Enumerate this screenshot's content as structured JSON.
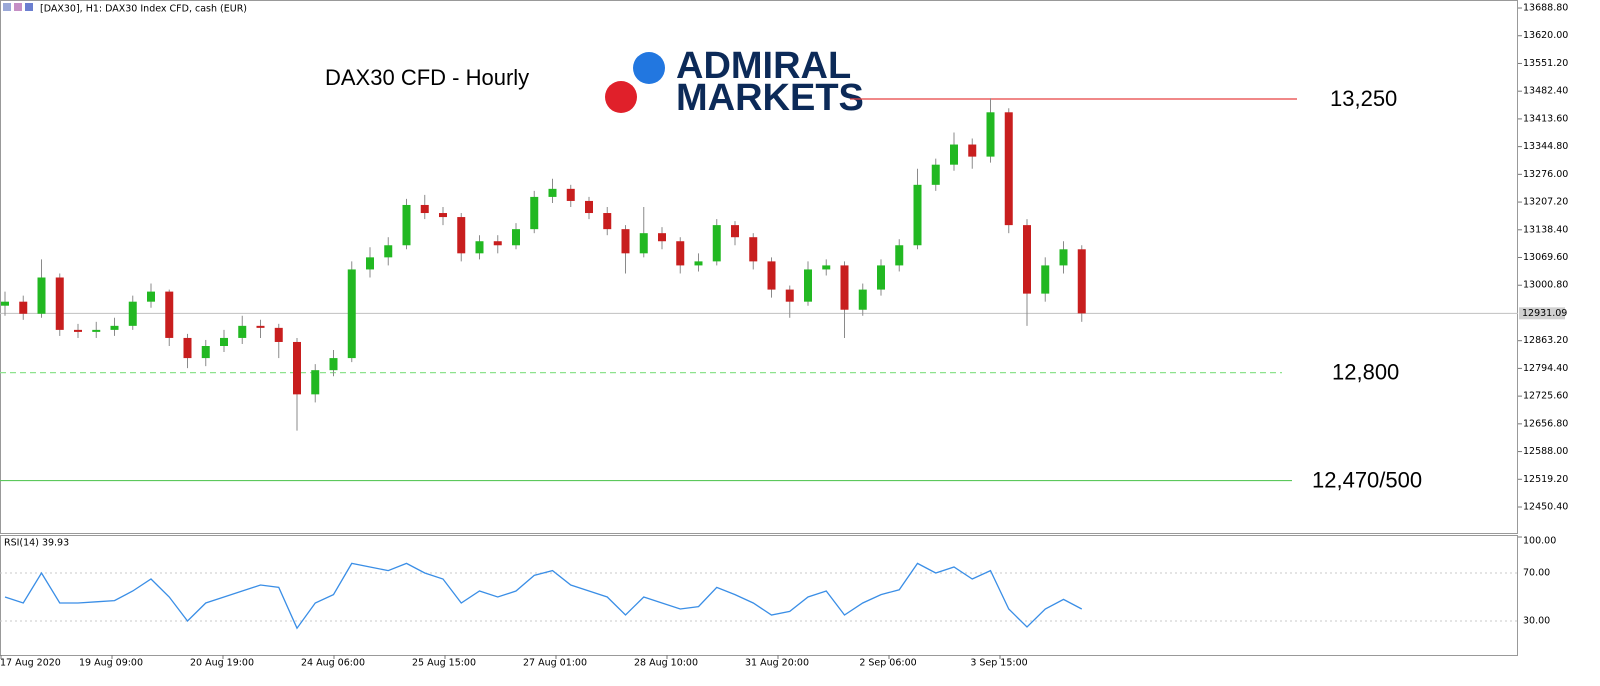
{
  "header": "[DAX30], H1:  DAX30 Index CFD, cash (EUR)",
  "logo": {
    "line1": "ADMIRAL",
    "line2": "MARKETS"
  },
  "chart_data": [
    {
      "type": "candlestick",
      "title": "DAX30 CFD - Hourly",
      "open": [
        12950,
        12960,
        12930,
        13020,
        12890,
        12885,
        12890,
        12900,
        12960,
        12985,
        12870,
        12820,
        12850,
        12870,
        12900,
        12895,
        12860,
        12730,
        12790,
        12820,
        13040,
        13070,
        13100,
        13200,
        13180,
        13170,
        13080,
        13110,
        13100,
        13140,
        13220,
        13240,
        13210,
        13180,
        13140,
        13080,
        13130,
        13110,
        13050,
        13060,
        13150,
        13120,
        13060,
        12990,
        12960,
        13040,
        13050,
        12940,
        12990,
        13050,
        13100,
        13250,
        13300,
        13350,
        13320,
        13430,
        13150,
        12980,
        13050,
        13090
      ],
      "high": [
        12985,
        12975,
        13065,
        13030,
        12905,
        12910,
        12920,
        12975,
        13005,
        12990,
        12880,
        12865,
        12890,
        12925,
        12915,
        12905,
        12870,
        12805,
        12840,
        13060,
        13095,
        13120,
        13215,
        13225,
        13195,
        13180,
        13125,
        13125,
        13155,
        13235,
        13265,
        13250,
        13220,
        13195,
        13150,
        13195,
        13145,
        13120,
        13080,
        13165,
        13160,
        13130,
        13070,
        13000,
        13060,
        13065,
        13060,
        13005,
        13065,
        13115,
        13290,
        13315,
        13380,
        13365,
        13465,
        13440,
        13165,
        13070,
        13110,
        13100
      ],
      "low": [
        12925,
        12915,
        12920,
        12875,
        12870,
        12870,
        12875,
        12890,
        12945,
        12850,
        12795,
        12800,
        12835,
        12855,
        12870,
        12820,
        12640,
        12710,
        12775,
        12810,
        13020,
        13050,
        13090,
        13165,
        13150,
        13060,
        13065,
        13080,
        13090,
        13130,
        13205,
        13195,
        13165,
        13125,
        13030,
        13070,
        13090,
        13030,
        13035,
        13050,
        13100,
        13040,
        12970,
        12920,
        12950,
        13025,
        12870,
        12925,
        12975,
        13035,
        13090,
        13235,
        13285,
        13290,
        13305,
        13130,
        12900,
        12960,
        13030,
        12910
      ],
      "close": [
        12960,
        12930,
        13020,
        12890,
        12885,
        12890,
        12900,
        12960,
        12985,
        12870,
        12820,
        12850,
        12870,
        12900,
        12895,
        12860,
        12730,
        12790,
        12820,
        13040,
        13070,
        13100,
        13200,
        13180,
        13170,
        13080,
        13110,
        13100,
        13140,
        13220,
        13240,
        13210,
        13180,
        13140,
        13080,
        13130,
        13110,
        13050,
        13060,
        13150,
        13120,
        13060,
        12990,
        12960,
        13040,
        13050,
        12940,
        12990,
        13050,
        13100,
        13250,
        13300,
        13350,
        13320,
        13430,
        13150,
        12980,
        13050,
        13090,
        12931
      ],
      "up_color": "#22b822",
      "down_color": "#c81e1e",
      "wick_color": "#8a8a8a",
      "ylim": [
        12385.9,
        13708.7
      ],
      "yticks": [
        {
          "value": 13688.8,
          "label": "13688.80"
        },
        {
          "value": 13620,
          "label": "13620.00"
        },
        {
          "value": 13551.2,
          "label": "13551.20"
        },
        {
          "value": 13482.4,
          "label": "13482.40"
        },
        {
          "value": 13413.6,
          "label": "13413.60"
        },
        {
          "value": 13344.8,
          "label": "13344.80"
        },
        {
          "value": 13276,
          "label": "13276.00"
        },
        {
          "value": 13207.2,
          "label": "13207.20"
        },
        {
          "value": 13138.4,
          "label": "13138.40"
        },
        {
          "value": 13069.6,
          "label": "13069.60"
        },
        {
          "value": 13000.8,
          "label": "13000.80"
        },
        {
          "value": 12863.2,
          "label": "12863.20"
        },
        {
          "value": 12794.4,
          "label": "12794.40"
        },
        {
          "value": 12725.6,
          "label": "12725.60"
        },
        {
          "value": 12656.8,
          "label": "12656.80"
        },
        {
          "value": 12588,
          "label": "12588.00"
        },
        {
          "value": 12519.2,
          "label": "12519.20"
        },
        {
          "value": 12450.4,
          "label": "12450.40"
        }
      ],
      "last_price": 12931.09,
      "levels": [
        {
          "label": "13,250",
          "level": 13463,
          "color": "#e84040",
          "dashed": false
        },
        {
          "label": "12,800",
          "level": 12784,
          "color": "#8ee28e",
          "dashed": true
        },
        {
          "label": "12,470/500",
          "level": 12516,
          "color": "#5cc85c",
          "dashed": false
        }
      ],
      "x_labels": [
        "17 Aug 2020",
        "19 Aug 09:00",
        "20 Aug 19:00",
        "24 Aug 06:00",
        "25 Aug 15:00",
        "27 Aug 01:00",
        "28 Aug 10:00",
        "31 Aug 20:00",
        "2 Sep 06:00",
        "3 Sep 15:00"
      ]
    },
    {
      "type": "line",
      "title": "RSI(14) 39.93",
      "color": "#3a8ee6",
      "values": [
        50,
        45,
        70,
        45,
        45,
        46,
        47,
        55,
        65,
        50,
        30,
        45,
        50,
        55,
        60,
        58,
        24,
        45,
        52,
        78,
        75,
        72,
        78,
        70,
        65,
        45,
        55,
        50,
        55,
        68,
        72,
        60,
        55,
        50,
        35,
        50,
        45,
        40,
        42,
        58,
        52,
        45,
        35,
        38,
        50,
        55,
        35,
        45,
        52,
        56,
        78,
        70,
        75,
        65,
        72,
        40,
        25,
        40,
        48,
        40
      ],
      "ylim": [
        0,
        100
      ],
      "yticks": [
        {
          "value": 100,
          "label": "100.00"
        },
        {
          "value": 70,
          "label": "70.00"
        },
        {
          "value": 30,
          "label": "30.00"
        }
      ]
    }
  ]
}
